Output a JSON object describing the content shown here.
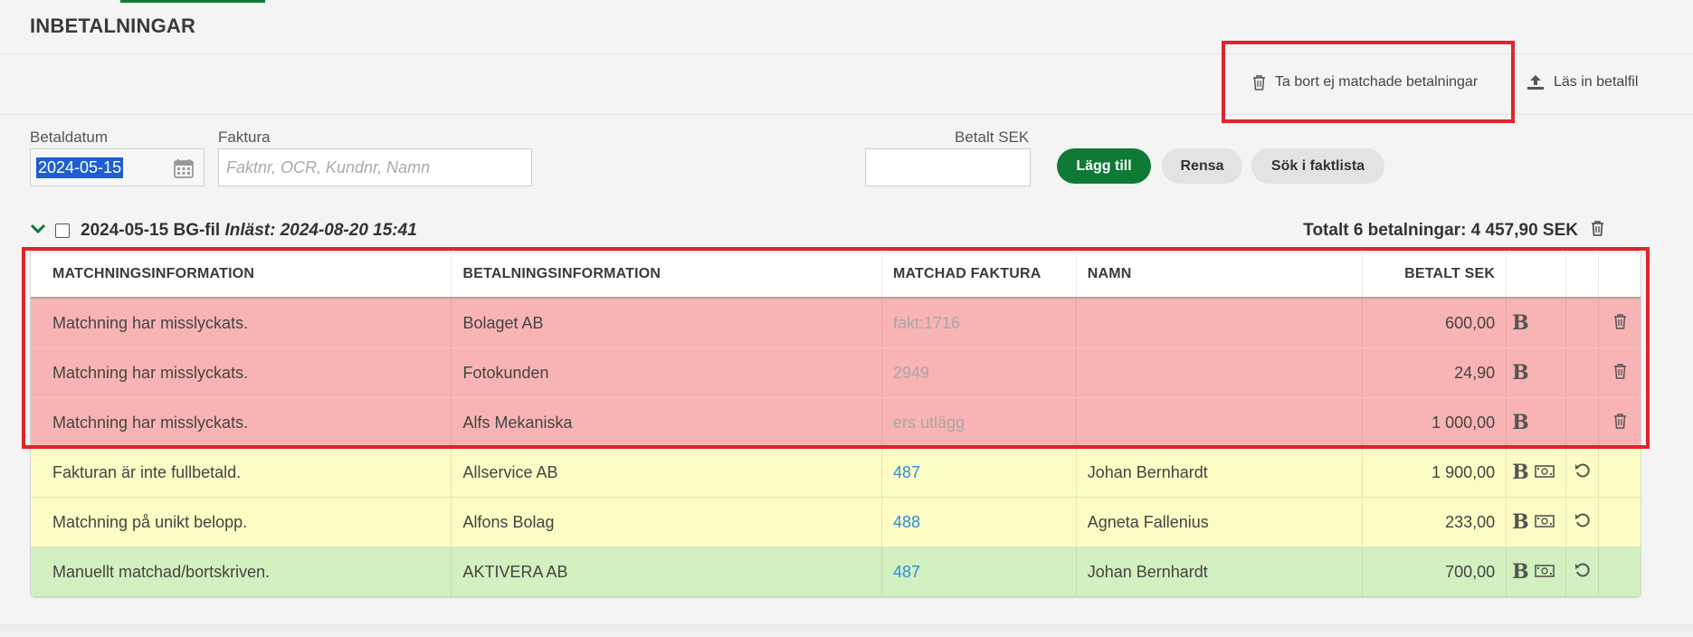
{
  "page": {
    "title": "INBETALNINGAR"
  },
  "actions": {
    "delete_unmatched": "Ta bort ej matchade betalningar",
    "import_file": "Läs in betalfil"
  },
  "form": {
    "date_label": "Betaldatum",
    "date_value": "2024-05-15",
    "invoice_label": "Faktura",
    "invoice_placeholder": "Faktnr, OCR, Kundnr, Namn",
    "paid_label": "Betalt SEK",
    "paid_value": "",
    "add_button": "Lägg till",
    "clear_button": "Rensa",
    "search_button": "Sök i faktlista"
  },
  "group": {
    "title": "2024-05-15 BG-fil",
    "imported": "Inläst: 2024-08-20 15:41",
    "total": "Totalt 6 betalningar: 4 457,90 SEK"
  },
  "table": {
    "headers": {
      "matching": "MATCHNINGSINFORMATION",
      "payment": "BETALNINGSINFORMATION",
      "invoice": "MATCHAD FAKTURA",
      "name": "NAMN",
      "paid": "BETALT SEK"
    },
    "rows": [
      {
        "status": "red",
        "matching": "Matchning har misslyckats.",
        "payment": "Bolaget AB",
        "invoice": "fakt:1716",
        "name": "",
        "paid": "600,00"
      },
      {
        "status": "red",
        "matching": "Matchning har misslyckats.",
        "payment": "Fotokunden",
        "invoice": "2949",
        "name": "",
        "paid": "24,90"
      },
      {
        "status": "red",
        "matching": "Matchning har misslyckats.",
        "payment": "Alfs Mekaniska",
        "invoice": "ers utlägg",
        "name": "",
        "paid": "1 000,00"
      },
      {
        "status": "yellow",
        "matching": "Fakturan är inte fullbetald.",
        "payment": "Allservice AB",
        "invoice": "487",
        "name": "Johan Bernhardt",
        "paid": "1 900,00"
      },
      {
        "status": "yellow",
        "matching": "Matchning på unikt belopp.",
        "payment": "Alfons Bolag",
        "invoice": "488",
        "name": "Agneta Fallenius",
        "paid": "233,00"
      },
      {
        "status": "green",
        "matching": "Manuellt matchad/bortskriven.",
        "payment": "AKTIVERA AB",
        "invoice": "487",
        "name": "Johan Bernhardt",
        "paid": "700,00"
      }
    ],
    "bookkeep_symbol": "B"
  },
  "colors": {
    "accent": "#0e7a35",
    "highlight": "#e0242c",
    "row_red": "#f8b4b4",
    "row_yellow": "#fdfcc4",
    "row_green": "#d2f0c0",
    "link": "#2f8ed6"
  }
}
